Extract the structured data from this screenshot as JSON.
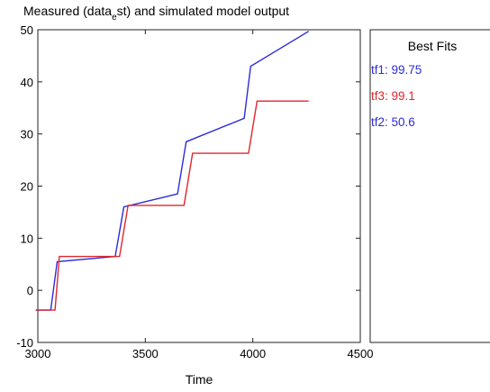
{
  "chart_data": {
    "type": "line",
    "title_prefix": "Measured (data",
    "title_sub": "e",
    "title_suffix": "st) and simulated model output",
    "xlabel": "Time",
    "ylabel": "",
    "xlim": [
      3000,
      4500
    ],
    "ylim": [
      -10,
      50
    ],
    "xticks": [
      "3000",
      "3500",
      "4000",
      "4500"
    ],
    "yticks": [
      "50",
      "40",
      "30",
      "20",
      "10",
      "0",
      "-10"
    ],
    "grid": false,
    "series": [
      {
        "color": "#2b2bd9",
        "x": [
          2990,
          3060,
          3090,
          3360,
          3400,
          3650,
          3690,
          3960,
          3990,
          4260
        ],
        "y": [
          -3.8,
          -3.8,
          5.5,
          6.5,
          16.0,
          18.5,
          28.5,
          33.0,
          43.0,
          49.7
        ]
      },
      {
        "color": "#e0262b",
        "x": [
          2990,
          3080,
          3100,
          3380,
          3420,
          3680,
          3720,
          3980,
          4020,
          4260
        ],
        "y": [
          -3.8,
          -3.8,
          6.5,
          6.5,
          16.3,
          16.3,
          26.3,
          26.3,
          36.3,
          36.3
        ]
      }
    ]
  },
  "legend": {
    "title": "Best Fits",
    "items": [
      {
        "label": "tf1: 99.75",
        "color": "#2b2bd9"
      },
      {
        "label": "tf3: 99.1",
        "color": "#e0262b"
      },
      {
        "label": "tf2: 50.6",
        "color": "#2b2bd9"
      }
    ]
  }
}
